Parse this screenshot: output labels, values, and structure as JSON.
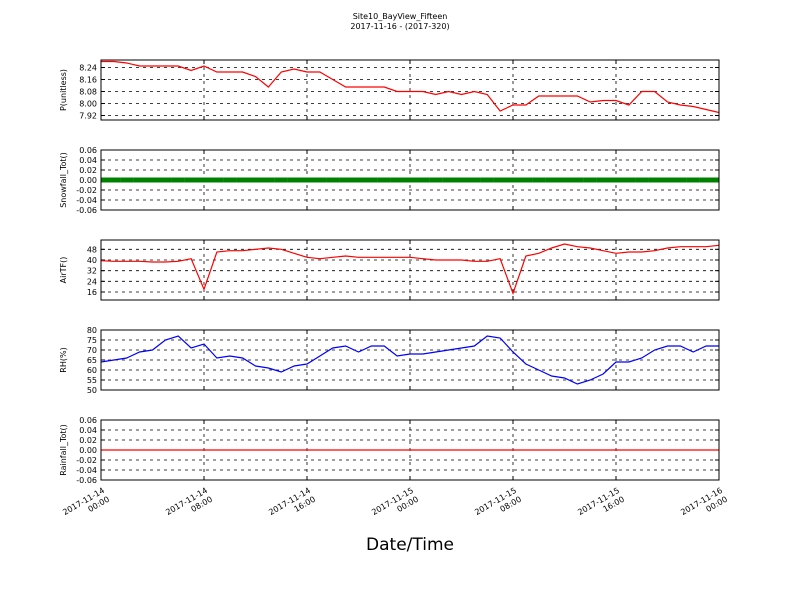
{
  "chart_data": [
    {
      "type": "line",
      "title": "Site10_BayView_Fifteen",
      "subtitle": "2017-11-16 - (2017-320)",
      "ylabel": "P(unitless)",
      "color": "#ff0000",
      "x": [
        "2017-11-14 00:00",
        "2017-11-14 01:00",
        "2017-11-14 02:00",
        "2017-11-14 03:00",
        "2017-11-14 04:00",
        "2017-11-14 05:00",
        "2017-11-14 06:00",
        "2017-11-14 07:00",
        "2017-11-14 08:00",
        "2017-11-14 09:00",
        "2017-11-14 10:00",
        "2017-11-14 11:00",
        "2017-11-14 12:00",
        "2017-11-14 13:00",
        "2017-11-14 14:00",
        "2017-11-14 15:00",
        "2017-11-14 16:00",
        "2017-11-14 17:00",
        "2017-11-14 18:00",
        "2017-11-14 19:00",
        "2017-11-14 20:00",
        "2017-11-14 21:00",
        "2017-11-14 22:00",
        "2017-11-14 23:00",
        "2017-11-15 00:00",
        "2017-11-15 01:00",
        "2017-11-15 02:00",
        "2017-11-15 03:00",
        "2017-11-15 04:00",
        "2017-11-15 05:00",
        "2017-11-15 06:00",
        "2017-11-15 07:00",
        "2017-11-15 08:00",
        "2017-11-15 09:00",
        "2017-11-15 10:00",
        "2017-11-15 11:00",
        "2017-11-15 12:00",
        "2017-11-15 13:00",
        "2017-11-15 14:00",
        "2017-11-15 15:00",
        "2017-11-15 16:00",
        "2017-11-15 17:00",
        "2017-11-15 18:00",
        "2017-11-15 19:00",
        "2017-11-15 20:00",
        "2017-11-15 21:00",
        "2017-11-15 22:00",
        "2017-11-15 23:00",
        "2017-11-16 00:00"
      ],
      "values": [
        8.28,
        8.28,
        8.27,
        8.25,
        8.25,
        8.25,
        8.25,
        8.22,
        8.25,
        8.21,
        8.21,
        8.21,
        8.18,
        8.11,
        8.21,
        8.23,
        8.21,
        8.21,
        8.16,
        8.11,
        8.11,
        8.11,
        8.11,
        8.08,
        8.08,
        8.08,
        8.06,
        8.08,
        8.06,
        8.08,
        8.06,
        7.95,
        7.99,
        7.99,
        8.05,
        8.05,
        8.05,
        8.05,
        8.01,
        8.02,
        8.02,
        7.99,
        8.08,
        8.08,
        8.01,
        7.99,
        7.98,
        7.96,
        7.94
      ],
      "ylim": [
        7.89,
        8.29
      ],
      "yticks": [
        7.92,
        {
          "value": 8,
          "label": "8.00"
        },
        8.08,
        8.16,
        8.24
      ],
      "grid": true
    },
    {
      "type": "scatter",
      "ylabel": "Snowfall_Tot()",
      "color": "#008000",
      "x": [
        "2017-11-14 00:00",
        "2017-11-14 01:00",
        "2017-11-14 02:00",
        "2017-11-14 03:00",
        "2017-11-14 04:00",
        "2017-11-14 05:00",
        "2017-11-14 06:00",
        "2017-11-14 07:00",
        "2017-11-14 08:00",
        "2017-11-14 09:00",
        "2017-11-14 10:00",
        "2017-11-14 11:00",
        "2017-11-14 12:00",
        "2017-11-14 13:00",
        "2017-11-14 14:00",
        "2017-11-14 15:00",
        "2017-11-14 16:00",
        "2017-11-14 17:00",
        "2017-11-14 18:00",
        "2017-11-14 19:00",
        "2017-11-14 20:00",
        "2017-11-14 21:00",
        "2017-11-14 22:00",
        "2017-11-14 23:00",
        "2017-11-15 00:00",
        "2017-11-15 01:00",
        "2017-11-15 02:00",
        "2017-11-15 03:00",
        "2017-11-15 04:00",
        "2017-11-15 05:00",
        "2017-11-15 06:00",
        "2017-11-15 07:00",
        "2017-11-15 08:00",
        "2017-11-15 09:00",
        "2017-11-15 10:00",
        "2017-11-15 11:00",
        "2017-11-15 12:00",
        "2017-11-15 13:00",
        "2017-11-15 14:00",
        "2017-11-15 15:00",
        "2017-11-15 16:00",
        "2017-11-15 17:00",
        "2017-11-15 18:00",
        "2017-11-15 19:00",
        "2017-11-15 20:00",
        "2017-11-15 21:00",
        "2017-11-15 22:00",
        "2017-11-15 23:00",
        "2017-11-16 00:00"
      ],
      "values": [
        0,
        0,
        0,
        0,
        0,
        0,
        0,
        0,
        0,
        0,
        0,
        0,
        0,
        0,
        0,
        0,
        0,
        0,
        0,
        0,
        0,
        0,
        0,
        0,
        0,
        0,
        0,
        0,
        0,
        0,
        0,
        0,
        0,
        0,
        0,
        0,
        0,
        0,
        0,
        0,
        0,
        0,
        0,
        0,
        0,
        0,
        0,
        0,
        0
      ],
      "ylim": [
        -0.06,
        0.06
      ],
      "yticks": [
        -0.06,
        -0.04,
        -0.02,
        {
          "value": 0,
          "label": "0.00"
        },
        0.02,
        0.04,
        0.06
      ],
      "grid": true
    },
    {
      "type": "line",
      "ylabel": "AirTF()",
      "color": "#ff0000",
      "x": [
        "2017-11-14 00:00",
        "2017-11-14 01:00",
        "2017-11-14 02:00",
        "2017-11-14 03:00",
        "2017-11-14 04:00",
        "2017-11-14 05:00",
        "2017-11-14 06:00",
        "2017-11-14 07:00",
        "2017-11-14 08:00",
        "2017-11-14 09:00",
        "2017-11-14 10:00",
        "2017-11-14 11:00",
        "2017-11-14 12:00",
        "2017-11-14 13:00",
        "2017-11-14 14:00",
        "2017-11-14 15:00",
        "2017-11-14 16:00",
        "2017-11-14 17:00",
        "2017-11-14 18:00",
        "2017-11-14 19:00",
        "2017-11-14 20:00",
        "2017-11-14 21:00",
        "2017-11-14 22:00",
        "2017-11-14 23:00",
        "2017-11-15 00:00",
        "2017-11-15 01:00",
        "2017-11-15 02:00",
        "2017-11-15 03:00",
        "2017-11-15 04:00",
        "2017-11-15 05:00",
        "2017-11-15 06:00",
        "2017-11-15 07:00",
        "2017-11-15 08:00",
        "2017-11-15 09:00",
        "2017-11-15 10:00",
        "2017-11-15 11:00",
        "2017-11-15 12:00",
        "2017-11-15 13:00",
        "2017-11-15 14:00",
        "2017-11-15 15:00",
        "2017-11-15 16:00",
        "2017-11-15 17:00",
        "2017-11-15 18:00",
        "2017-11-15 19:00",
        "2017-11-15 20:00",
        "2017-11-15 21:00",
        "2017-11-15 22:00",
        "2017-11-15 23:00",
        "2017-11-16 00:00"
      ],
      "values": [
        39.5,
        39,
        39,
        39,
        38.5,
        38.5,
        39,
        41,
        18,
        46,
        47,
        47,
        48,
        49,
        48,
        45,
        42,
        41,
        42,
        43,
        42,
        42,
        42,
        42,
        42,
        41,
        40,
        40,
        40,
        39,
        39,
        41,
        15,
        43,
        45,
        49,
        52,
        50,
        49,
        47,
        45,
        46,
        46,
        47,
        49,
        50,
        50,
        50,
        51
      ],
      "ylim": [
        10,
        55
      ],
      "yticks": [
        16,
        24,
        32,
        40,
        48
      ],
      "grid": true
    },
    {
      "type": "line",
      "ylabel": "RH(%)",
      "color": "#0000ff",
      "x": [
        "2017-11-14 00:00",
        "2017-11-14 01:00",
        "2017-11-14 02:00",
        "2017-11-14 03:00",
        "2017-11-14 04:00",
        "2017-11-14 05:00",
        "2017-11-14 06:00",
        "2017-11-14 07:00",
        "2017-11-14 08:00",
        "2017-11-14 09:00",
        "2017-11-14 10:00",
        "2017-11-14 11:00",
        "2017-11-14 12:00",
        "2017-11-14 13:00",
        "2017-11-14 14:00",
        "2017-11-14 15:00",
        "2017-11-14 16:00",
        "2017-11-14 17:00",
        "2017-11-14 18:00",
        "2017-11-14 19:00",
        "2017-11-14 20:00",
        "2017-11-14 21:00",
        "2017-11-14 22:00",
        "2017-11-14 23:00",
        "2017-11-15 00:00",
        "2017-11-15 01:00",
        "2017-11-15 02:00",
        "2017-11-15 03:00",
        "2017-11-15 04:00",
        "2017-11-15 05:00",
        "2017-11-15 06:00",
        "2017-11-15 07:00",
        "2017-11-15 08:00",
        "2017-11-15 09:00",
        "2017-11-15 10:00",
        "2017-11-15 11:00",
        "2017-11-15 12:00",
        "2017-11-15 13:00",
        "2017-11-15 14:00",
        "2017-11-15 15:00",
        "2017-11-15 16:00",
        "2017-11-15 17:00",
        "2017-11-15 18:00",
        "2017-11-15 19:00",
        "2017-11-15 20:00",
        "2017-11-15 21:00",
        "2017-11-15 22:00",
        "2017-11-15 23:00",
        "2017-11-16 00:00"
      ],
      "values": [
        64,
        65,
        66,
        69,
        70,
        75,
        77,
        71,
        73,
        66,
        67,
        66,
        62,
        61,
        59,
        62,
        63,
        67,
        71,
        72,
        69,
        72,
        72,
        67,
        68,
        68,
        69,
        70,
        71,
        72,
        77,
        76,
        69,
        63,
        60,
        57,
        56,
        53,
        55,
        58,
        64,
        64,
        66,
        70,
        72,
        72,
        69,
        72,
        72
      ],
      "ylim": [
        50,
        80
      ],
      "yticks": [
        50,
        55,
        60,
        65,
        70,
        75,
        80
      ],
      "grid": true
    },
    {
      "type": "line",
      "ylabel": "Rainfall_Tot()",
      "xlabel": "Date/Time",
      "color": "#ff0000",
      "x": [
        "2017-11-14 00:00",
        "2017-11-14 01:00",
        "2017-11-14 02:00",
        "2017-11-14 03:00",
        "2017-11-14 04:00",
        "2017-11-14 05:00",
        "2017-11-14 06:00",
        "2017-11-14 07:00",
        "2017-11-14 08:00",
        "2017-11-14 09:00",
        "2017-11-14 10:00",
        "2017-11-14 11:00",
        "2017-11-14 12:00",
        "2017-11-14 13:00",
        "2017-11-14 14:00",
        "2017-11-14 15:00",
        "2017-11-14 16:00",
        "2017-11-14 17:00",
        "2017-11-14 18:00",
        "2017-11-14 19:00",
        "2017-11-14 20:00",
        "2017-11-14 21:00",
        "2017-11-14 22:00",
        "2017-11-14 23:00",
        "2017-11-15 00:00",
        "2017-11-15 01:00",
        "2017-11-15 02:00",
        "2017-11-15 03:00",
        "2017-11-15 04:00",
        "2017-11-15 05:00",
        "2017-11-15 06:00",
        "2017-11-15 07:00",
        "2017-11-15 08:00",
        "2017-11-15 09:00",
        "2017-11-15 10:00",
        "2017-11-15 11:00",
        "2017-11-15 12:00",
        "2017-11-15 13:00",
        "2017-11-15 14:00",
        "2017-11-15 15:00",
        "2017-11-15 16:00",
        "2017-11-15 17:00",
        "2017-11-15 18:00",
        "2017-11-15 19:00",
        "2017-11-15 20:00",
        "2017-11-15 21:00",
        "2017-11-15 22:00",
        "2017-11-15 23:00",
        "2017-11-16 00:00"
      ],
      "values": [
        0,
        0,
        0,
        0,
        0,
        0,
        0,
        0,
        0,
        0,
        0,
        0,
        0,
        0,
        0,
        0,
        0,
        0,
        0,
        0,
        0,
        0,
        0,
        0,
        0,
        0,
        0,
        0,
        0,
        0,
        0,
        0,
        0,
        0,
        0,
        0,
        0,
        0,
        0,
        0,
        0,
        0,
        0,
        0,
        0,
        0,
        0,
        0,
        0
      ],
      "ylim": [
        -0.06,
        0.06
      ],
      "yticks": [
        -0.06,
        -0.04,
        -0.02,
        {
          "value": 0,
          "label": "0.00"
        },
        0.02,
        0.04,
        0.06
      ],
      "grid": true,
      "xlim": [
        "2017-11-14 00:00",
        "2017-11-16 00:00"
      ],
      "xticks": [
        "2017-11-14 00:00",
        "2017-11-14 08:00",
        "2017-11-14 16:00",
        "2017-11-15 00:00",
        "2017-11-15 08:00",
        "2017-11-15 16:00",
        "2017-11-16 00:00"
      ]
    }
  ]
}
